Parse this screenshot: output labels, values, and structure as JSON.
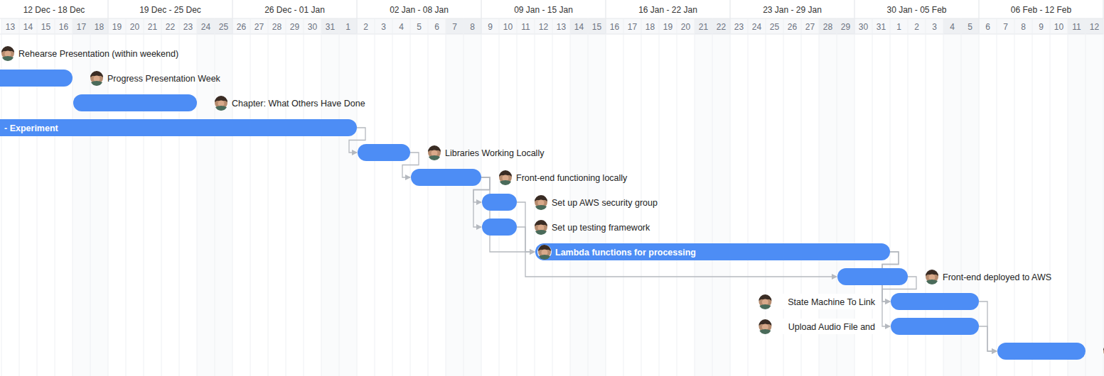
{
  "chart_data": {
    "type": "gantt",
    "color": "#4d8df5",
    "weeks": [
      "12 Dec - 18 Dec",
      "19 Dec - 25 Dec",
      "26 Dec - 01 Jan",
      "02 Jan - 08 Jan",
      "09 Jan - 15 Jan",
      "16 Jan - 22 Jan",
      "23 Jan - 29 Jan",
      "30 Jan - 05 Feb",
      "06 Feb - 12 Feb"
    ],
    "days": [
      "13",
      "14",
      "15",
      "16",
      "17",
      "18",
      "19",
      "20",
      "21",
      "22",
      "23",
      "24",
      "25",
      "26",
      "27",
      "28",
      "29",
      "30",
      "31",
      "1",
      "2",
      "3",
      "4",
      "5",
      "6",
      "7",
      "8",
      "9",
      "10",
      "11",
      "12",
      "13",
      "14",
      "15",
      "16",
      "17",
      "18",
      "19",
      "20",
      "21",
      "22",
      "23",
      "24",
      "25",
      "26",
      "27",
      "28",
      "29",
      "30",
      "31",
      "1",
      "2",
      "3",
      "4",
      "5",
      "6",
      "7",
      "8",
      "9",
      "10",
      "11",
      "12"
    ],
    "tasks": [
      {
        "name": "Rehearse Presentation (within weekend)",
        "start": null,
        "end": null
      },
      {
        "name": "Progress Presentation Week",
        "start": null,
        "end": 4
      },
      {
        "name": "Chapter: What Others Have Done",
        "start": 4,
        "end": 11
      },
      {
        "name": "- Experiment",
        "start": null,
        "end": 20
      },
      {
        "name": "Libraries Working Locally",
        "start": 20,
        "end": 23
      },
      {
        "name": "Front-end functioning locally",
        "start": 23,
        "end": 27
      },
      {
        "name": "Set up AWS security group",
        "start": 27,
        "end": 29
      },
      {
        "name": "Set up testing framework",
        "start": 27,
        "end": 29
      },
      {
        "name": "Lambda functions for processing",
        "start": 30,
        "end": 50
      },
      {
        "name": "Front-end deployed to AWS",
        "start": 47,
        "end": 51
      },
      {
        "name": "State Machine To Link",
        "start": 50,
        "end": 55
      },
      {
        "name": "Upload Audio File and",
        "start": 50,
        "end": 55
      },
      {
        "name": null,
        "start": 56,
        "end": 61
      }
    ],
    "dependencies": [
      [
        3,
        4
      ],
      [
        4,
        5
      ],
      [
        5,
        6
      ],
      [
        5,
        7
      ],
      [
        5,
        8
      ],
      [
        6,
        8
      ],
      [
        7,
        9
      ],
      [
        8,
        10
      ],
      [
        8,
        11
      ],
      [
        9,
        10
      ],
      [
        10,
        12
      ],
      [
        11,
        12
      ]
    ]
  }
}
